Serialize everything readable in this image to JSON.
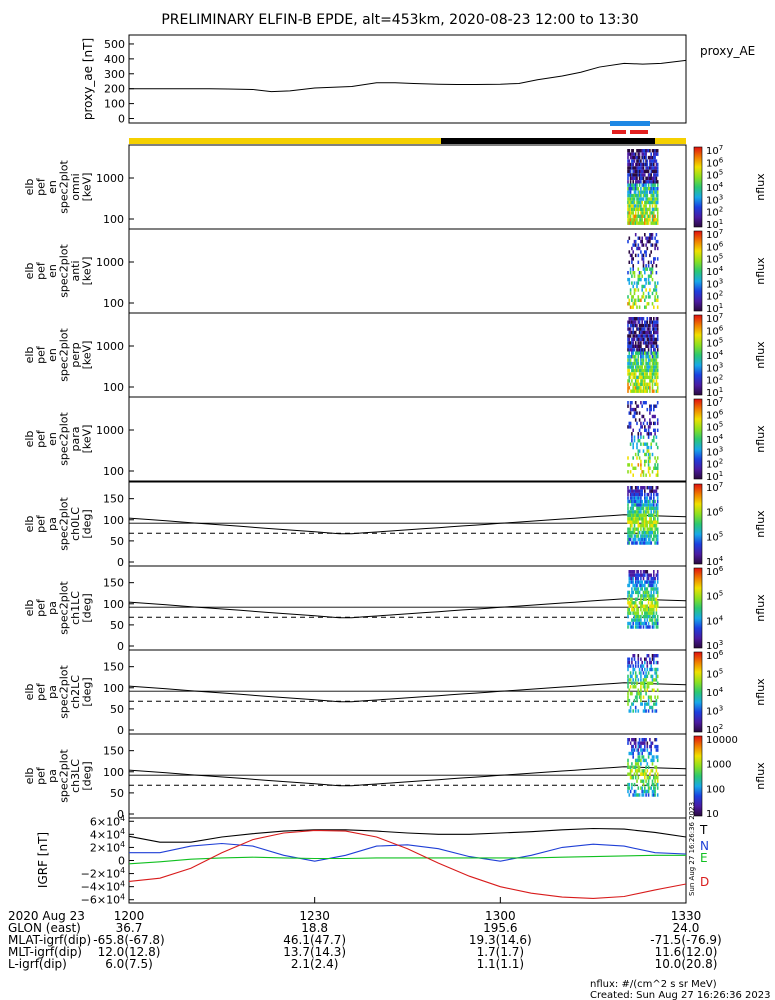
{
  "title": "PRELIMINARY ELFIN-B EPDE, alt=453km, 2020-08-23 12:00 to 13:30",
  "footer": {
    "units": "nflux: #/(cm^2 s sr MeV)",
    "created": "Created: Sun Aug 27 16:26:36 2023",
    "stamp": "Sun Aug 27 16:26:36 2023"
  },
  "bottom_axis": {
    "rows": [
      {
        "label": "2020 Aug 23",
        "values": [
          "1200",
          "1230",
          "1300",
          "1330"
        ]
      },
      {
        "label": "GLON (east)",
        "values": [
          "36.7",
          "18.8",
          "195.6",
          "24.0"
        ]
      },
      {
        "label": "MLAT-igrf(dip)",
        "values": [
          "-65.8(-67.8)",
          "46.1(47.7)",
          "19.3(14.6)",
          "-71.5(-76.9)"
        ]
      },
      {
        "label": "MLT-igrf(dip)",
        "values": [
          "12.0(12.8)",
          "13.7(14.3)",
          "1.7(1.7)",
          "11.6(12.0)"
        ]
      },
      {
        "label": "L-igrf(dip)",
        "values": [
          "6.0(7.5)",
          "2.1(2.4)",
          "1.1(1.1)",
          "10.0(20.8)"
        ]
      }
    ]
  },
  "colors": {
    "sunlight": "#f5d000",
    "shadow": "#000000",
    "bar_blue": "#1e88e5",
    "bar_red": "#e32020",
    "T": "#000000",
    "N": "#1f3fd6",
    "E": "#10c020",
    "D": "#d81b1b"
  },
  "chart_data": [
    {
      "type": "line",
      "ylabel": "proxy_ae [nT]",
      "legend": "proxy_AE",
      "yticks": [
        "500",
        "400",
        "300",
        "200",
        "100",
        "0"
      ],
      "ylim": [
        -30,
        560
      ],
      "x_minutes": [
        0,
        3,
        6,
        10,
        13,
        16,
        20,
        23,
        26,
        30,
        33,
        36,
        40,
        43,
        46,
        50,
        53,
        56,
        60,
        63,
        66,
        70,
        73,
        76,
        80,
        83,
        86,
        90
      ],
      "values": [
        200,
        200,
        200,
        200,
        200,
        198,
        195,
        180,
        185,
        205,
        210,
        215,
        240,
        240,
        235,
        230,
        228,
        228,
        230,
        235,
        260,
        285,
        310,
        345,
        370,
        365,
        370,
        390
      ]
    },
    {
      "type": "heatmap",
      "name": "elb pef en spec2plot omni [keV]",
      "ylabel": [
        "elb",
        "pef",
        "en",
        "spec2plot",
        "omni",
        "[keV]"
      ],
      "yticks": [
        "1000",
        "100"
      ],
      "cbar_ticks": [
        "10^7",
        "10^6",
        "10^5",
        "10^4",
        "10^3",
        "10^2",
        "10^1"
      ],
      "cbar_label": "nflux"
    },
    {
      "type": "heatmap",
      "name": "elb pef en spec2plot anti [keV]",
      "ylabel": [
        "elb",
        "pef",
        "en",
        "spec2plot",
        "anti",
        "[keV]"
      ],
      "yticks": [
        "1000",
        "100"
      ],
      "cbar_ticks": [
        "10^7",
        "10^6",
        "10^5",
        "10^4",
        "10^3",
        "10^2",
        "10^1"
      ],
      "cbar_label": "nflux"
    },
    {
      "type": "heatmap",
      "name": "elb pef en spec2plot perp [keV]",
      "ylabel": [
        "elb",
        "pef",
        "en",
        "spec2plot",
        "perp",
        "[keV]"
      ],
      "yticks": [
        "1000",
        "100"
      ],
      "cbar_ticks": [
        "10^7",
        "10^6",
        "10^5",
        "10^4",
        "10^3",
        "10^2",
        "10^1"
      ],
      "cbar_label": "nflux"
    },
    {
      "type": "heatmap",
      "name": "elb pef en spec2plot para [keV]",
      "ylabel": [
        "elb",
        "pef",
        "en",
        "spec2plot",
        "para",
        "[keV]"
      ],
      "yticks": [
        "1000",
        "100"
      ],
      "cbar_ticks": [
        "10^7",
        "10^6",
        "10^5",
        "10^4",
        "10^3",
        "10^2",
        "10^1"
      ],
      "cbar_label": "nflux"
    },
    {
      "type": "heatmap",
      "name": "elb pef pa spec2plot ch0LC [deg]",
      "ylabel": [
        "elb",
        "pef",
        "pa",
        "spec2plot",
        "ch0LC",
        "[deg]"
      ],
      "yticks": [
        "150",
        "100",
        "50",
        "0"
      ],
      "cbar_ticks": [
        "10^7",
        "10^6",
        "10^5",
        "10^4"
      ],
      "cbar_label": "nflux"
    },
    {
      "type": "heatmap",
      "name": "elb pef pa spec2plot ch1LC [deg]",
      "ylabel": [
        "elb",
        "pef",
        "pa",
        "spec2plot",
        "ch1LC",
        "[deg]"
      ],
      "yticks": [
        "150",
        "100",
        "50",
        "0"
      ],
      "cbar_ticks": [
        "10^6",
        "10^5",
        "10^4",
        "10^3"
      ],
      "cbar_label": "nflux"
    },
    {
      "type": "heatmap",
      "name": "elb pef pa spec2plot ch2LC [deg]",
      "ylabel": [
        "elb",
        "pef",
        "pa",
        "spec2plot",
        "ch2LC",
        "[deg]"
      ],
      "yticks": [
        "150",
        "100",
        "50",
        "0"
      ],
      "cbar_ticks": [
        "10^6",
        "10^5",
        "10^4",
        "10^3",
        "10^2"
      ],
      "cbar_label": "nflux"
    },
    {
      "type": "heatmap",
      "name": "elb pef pa spec2plot ch3LC [deg]",
      "ylabel": [
        "elb",
        "pef",
        "pa",
        "spec2plot",
        "ch3LC",
        "[deg]"
      ],
      "yticks": [
        "150",
        "100",
        "50",
        "0"
      ],
      "cbar_ticks": [
        "10000",
        "1000",
        "100",
        "10"
      ],
      "cbar_label": "nflux"
    },
    {
      "type": "line",
      "ylabel": "IGRF [nT]",
      "yticks": [
        "6×10^4",
        "4×10^4",
        "2×10^4",
        "0",
        "−2×10^4",
        "−4×10^4",
        "−6×10^4"
      ],
      "ylim": [
        -65000,
        65000
      ],
      "x_minutes": [
        0,
        5,
        10,
        15,
        20,
        25,
        30,
        35,
        40,
        45,
        50,
        55,
        60,
        65,
        70,
        75,
        80,
        85,
        90
      ],
      "series": [
        {
          "name": "T",
          "values": [
            37000,
            28000,
            28000,
            36000,
            41000,
            45000,
            47000,
            47000,
            45000,
            42000,
            40000,
            40000,
            42000,
            44000,
            47000,
            49000,
            48000,
            43000,
            36000
          ]
        },
        {
          "name": "N",
          "values": [
            12000,
            12000,
            22000,
            26000,
            22000,
            8000,
            -1000,
            8000,
            22000,
            24000,
            18000,
            6000,
            -1000,
            8000,
            20000,
            25000,
            22000,
            12000,
            10000
          ]
        },
        {
          "name": "E",
          "values": [
            -5000,
            -2000,
            2000,
            4000,
            5000,
            4000,
            3000,
            3000,
            4000,
            4000,
            4000,
            4000,
            4000,
            4000,
            5000,
            6000,
            7000,
            8000,
            8000
          ]
        },
        {
          "name": "D",
          "values": [
            -32000,
            -27000,
            -12000,
            12000,
            32000,
            42000,
            46000,
            45000,
            36000,
            18000,
            -4000,
            -24000,
            -40000,
            -50000,
            -56000,
            -58000,
            -55000,
            -45000,
            -36000
          ]
        }
      ]
    }
  ]
}
